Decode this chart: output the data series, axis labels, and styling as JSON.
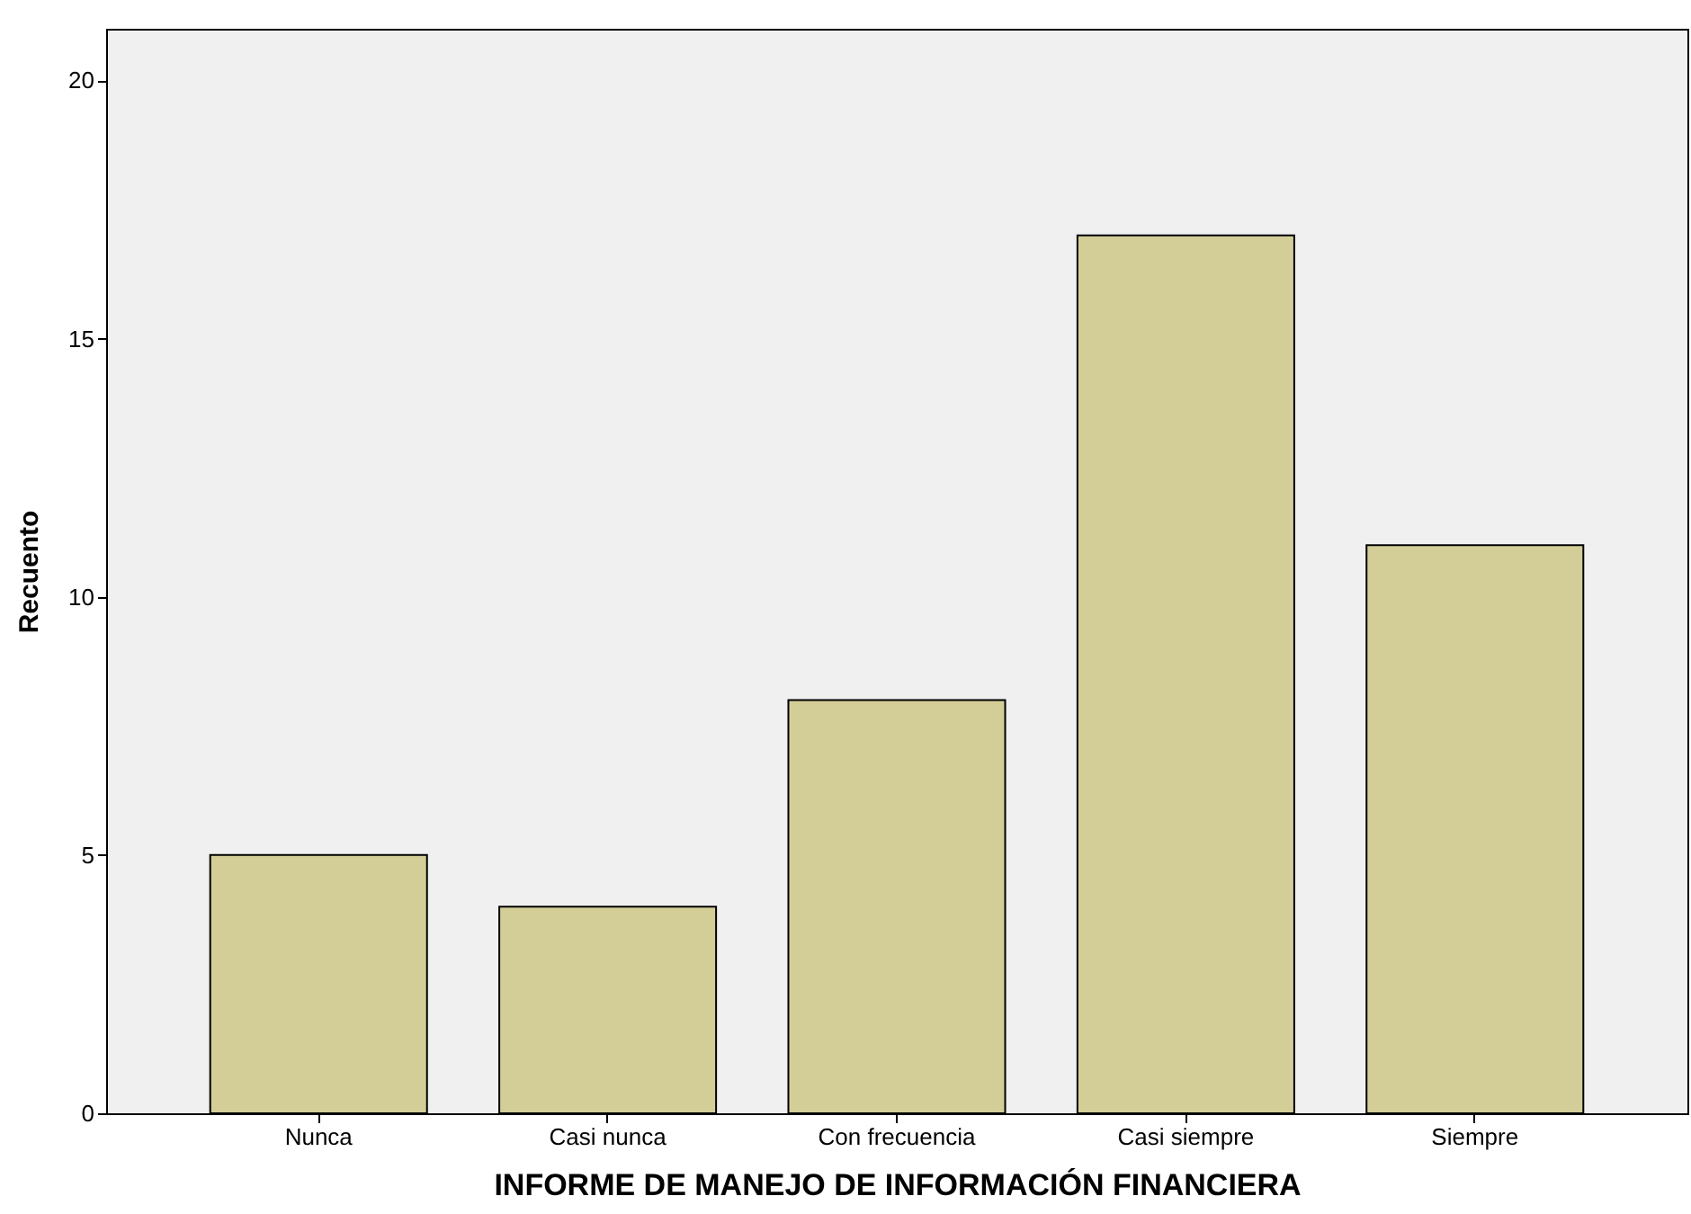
{
  "chart_data": {
    "type": "bar",
    "xlabel": "INFORME DE MANEJO DE INFORMACIÓN FINANCIERA",
    "ylabel": "Recuento",
    "categories": [
      "Nunca",
      "Casi nunca",
      "Con frecuencia",
      "Casi siempre",
      "Siempre"
    ],
    "values": [
      5,
      4,
      8,
      17,
      11
    ],
    "color": "#d3ce97",
    "ylim": [
      0,
      21
    ],
    "yticks": [
      0,
      5,
      10,
      15,
      20
    ],
    "grid": false
  }
}
